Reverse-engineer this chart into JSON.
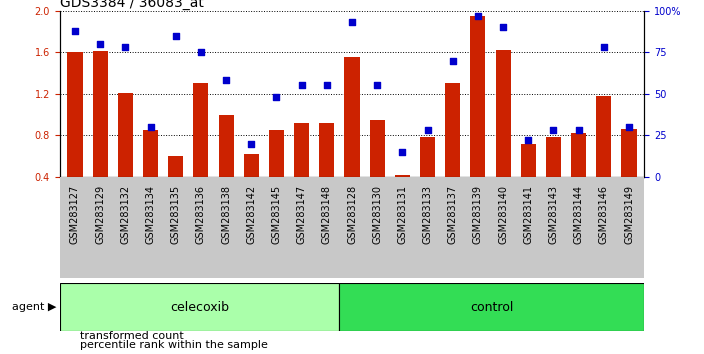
{
  "title": "GDS3384 / 36083_at",
  "samples": [
    "GSM283127",
    "GSM283129",
    "GSM283132",
    "GSM283134",
    "GSM283135",
    "GSM283136",
    "GSM283138",
    "GSM283142",
    "GSM283145",
    "GSM283147",
    "GSM283148",
    "GSM283128",
    "GSM283130",
    "GSM283131",
    "GSM283133",
    "GSM283137",
    "GSM283139",
    "GSM283140",
    "GSM283141",
    "GSM283143",
    "GSM283144",
    "GSM283146",
    "GSM283149"
  ],
  "red_values": [
    1.6,
    1.61,
    1.21,
    0.85,
    0.6,
    1.3,
    1.0,
    0.62,
    0.85,
    0.92,
    0.92,
    1.55,
    0.95,
    0.42,
    0.78,
    1.3,
    1.95,
    1.62,
    0.72,
    0.78,
    0.82,
    1.18,
    0.86
  ],
  "blue_values": [
    88,
    80,
    78,
    30,
    85,
    75,
    58,
    20,
    48,
    55,
    55,
    93,
    55,
    15,
    28,
    70,
    97,
    90,
    22,
    28,
    28,
    78,
    30
  ],
  "celecoxib_count": 11,
  "control_count": 12,
  "ylim_left": [
    0.4,
    2.0
  ],
  "ylim_right": [
    0,
    100
  ],
  "yticks_left": [
    0.4,
    0.8,
    1.2,
    1.6,
    2.0
  ],
  "yticks_right": [
    0,
    25,
    50,
    75,
    100
  ],
  "bar_color": "#CC2200",
  "dot_color": "#0000CC",
  "celecoxib_facecolor": "#AAFFAA",
  "control_facecolor": "#33DD55",
  "xtick_bg": "#C8C8C8",
  "plot_bg": "#FFFFFF",
  "title_fontsize": 10,
  "tick_fontsize": 7,
  "legend_fontsize": 8,
  "band_fontsize": 9,
  "agent_fontsize": 8
}
